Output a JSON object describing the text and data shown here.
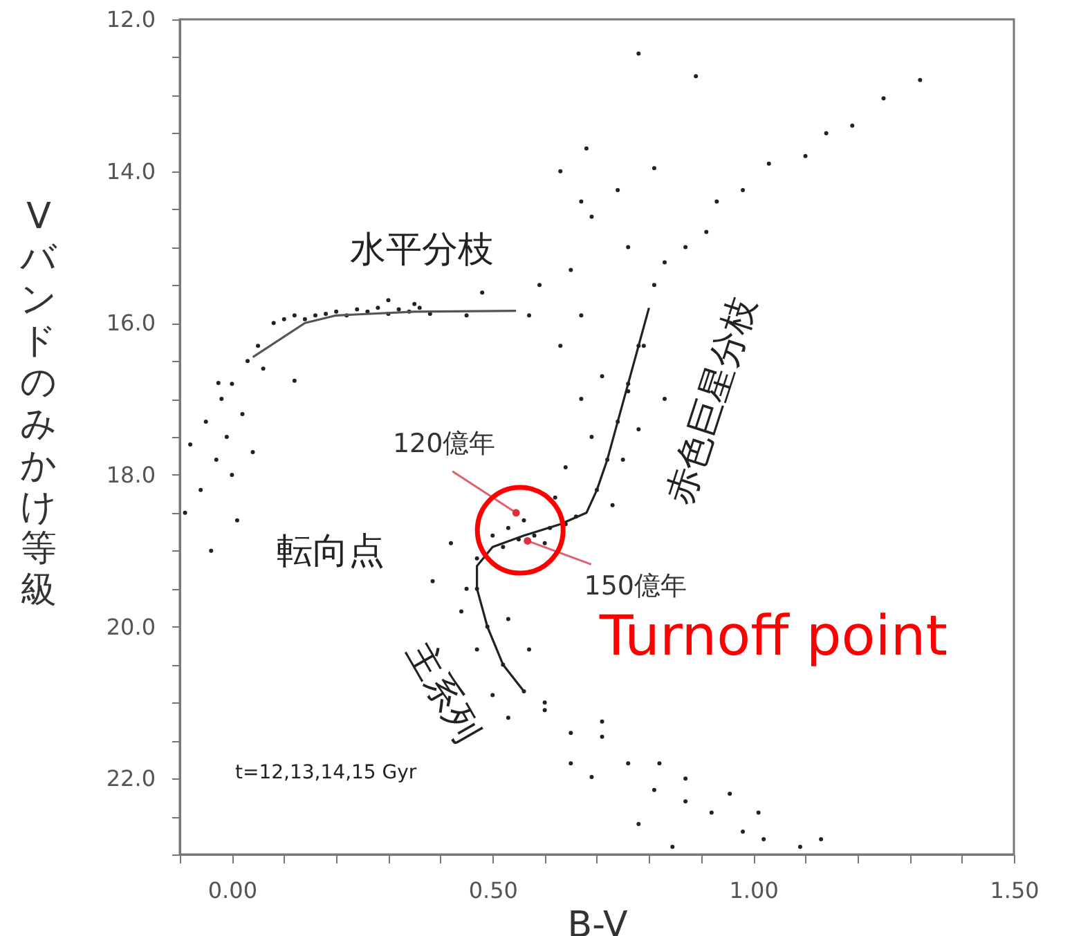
{
  "chart_data": {
    "type": "scatter",
    "xlabel": "B-V",
    "ylabel": "Vバンドのみかけ等級",
    "xlim": [
      -0.1,
      1.5
    ],
    "ylim": [
      23,
      12
    ],
    "xticks": [
      {
        "value": -0.1,
        "label": null
      },
      {
        "value": 0,
        "label": "0.00"
      },
      {
        "value": 0.1,
        "label": null
      },
      {
        "value": 0.2,
        "label": null
      },
      {
        "value": 0.3,
        "label": null
      },
      {
        "value": 0.4,
        "label": null
      },
      {
        "value": 0.5,
        "label": "0.50"
      },
      {
        "value": 0.6,
        "label": null
      },
      {
        "value": 0.7,
        "label": null
      },
      {
        "value": 0.8,
        "label": null
      },
      {
        "value": 0.9,
        "label": null
      },
      {
        "value": 1,
        "label": "1.00"
      },
      {
        "value": 1.1,
        "label": null
      },
      {
        "value": 1.2,
        "label": null
      },
      {
        "value": 1.3,
        "label": null
      },
      {
        "value": 1.4,
        "label": null
      },
      {
        "value": 1.5,
        "label": "1.50"
      }
    ],
    "yticks": [
      {
        "value": 12,
        "label": "12.0"
      },
      {
        "value": 12.5,
        "label": null
      },
      {
        "value": 13,
        "label": null
      },
      {
        "value": 13.5,
        "label": null
      },
      {
        "value": 14,
        "label": "14.0"
      },
      {
        "value": 14.5,
        "label": null
      },
      {
        "value": 15,
        "label": null
      },
      {
        "value": 15.5,
        "label": null
      },
      {
        "value": 16,
        "label": "16.0"
      },
      {
        "value": 16.5,
        "label": null
      },
      {
        "value": 17,
        "label": null
      },
      {
        "value": 17.5,
        "label": null
      },
      {
        "value": 18,
        "label": "18.0"
      },
      {
        "value": 18.5,
        "label": null
      },
      {
        "value": 19,
        "label": null
      },
      {
        "value": 19.5,
        "label": null
      },
      {
        "value": 20,
        "label": "20.0"
      },
      {
        "value": 20.5,
        "label": null
      },
      {
        "value": 21,
        "label": null
      },
      {
        "value": 21.5,
        "label": null
      },
      {
        "value": 22,
        "label": "22.0"
      },
      {
        "value": 22.5,
        "label": null
      },
      {
        "value": 23,
        "label": null
      }
    ],
    "grid": false,
    "series": [
      {
        "marker": "circle",
        "color": "#222222",
        "x": [
          -0.026,
          0.08,
          0.1,
          0.12,
          0.14,
          0.16,
          0.18,
          0.2,
          0.22,
          0.24,
          0.26,
          0.28,
          0.3,
          0.32,
          0.34,
          0.36,
          0.38,
          0.3,
          0.35,
          0.45,
          0.48,
          0.05,
          0.03,
          0.0,
          -0.02,
          -0.05,
          -0.08,
          0.02,
          -0.03,
          0.0,
          -0.06,
          0.04,
          -0.09,
          0.01,
          -0.04,
          0.06,
          -0.01,
          0.12,
          0.78,
          0.89,
          1.32,
          1.25,
          1.19,
          1.14,
          1.1,
          1.03,
          0.98,
          0.93,
          0.91,
          0.87,
          0.83,
          0.81,
          0.68,
          0.63,
          0.74,
          0.81,
          0.67,
          0.69,
          0.76,
          0.65,
          0.59,
          0.57,
          0.63,
          0.67,
          0.79,
          0.76,
          0.71,
          0.83,
          0.78,
          0.76,
          0.74,
          0.72,
          0.7,
          0.66,
          0.69,
          0.75,
          0.67,
          0.78,
          0.64,
          0.73,
          0.62,
          0.52,
          0.55,
          0.58,
          0.61,
          0.64,
          0.56,
          0.6,
          0.53,
          0.5,
          0.47,
          0.42,
          0.385,
          0.45,
          0.47,
          0.49,
          0.52,
          0.56,
          0.44,
          0.53,
          0.47,
          0.57,
          0.5,
          0.6,
          0.53,
          0.65,
          0.71,
          0.76,
          0.65,
          0.81,
          0.87,
          0.92,
          0.98,
          1.02,
          1.09,
          1.13,
          1.01,
          0.955,
          0.6,
          0.69,
          0.78,
          0.845,
          0.71,
          0.87,
          0.82
        ],
        "values": [
          16.79,
          16.0,
          15.95,
          15.9,
          15.95,
          15.9,
          15.88,
          15.85,
          15.9,
          15.82,
          15.85,
          15.8,
          15.88,
          15.82,
          15.85,
          15.8,
          15.88,
          15.7,
          15.75,
          15.9,
          15.6,
          16.3,
          16.5,
          16.8,
          17.0,
          17.3,
          17.6,
          17.2,
          17.8,
          18.0,
          18.2,
          17.7,
          18.5,
          18.6,
          19.0,
          16.6,
          17.5,
          16.76,
          12.45,
          12.75,
          12.8,
          13.04,
          13.4,
          13.5,
          13.8,
          13.9,
          14.25,
          14.4,
          14.8,
          15.0,
          15.2,
          15.5,
          13.7,
          14.0,
          14.25,
          13.96,
          14.4,
          14.6,
          15.0,
          15.3,
          15.5,
          15.9,
          16.3,
          15.9,
          16.3,
          16.9,
          16.7,
          17.0,
          16.3,
          16.8,
          17.3,
          17.8,
          18.2,
          18.55,
          17.5,
          17.8,
          17.0,
          17.4,
          17.9,
          18.4,
          18.3,
          18.95,
          18.85,
          18.8,
          18.7,
          18.65,
          18.6,
          18.9,
          18.7,
          18.8,
          19.1,
          18.9,
          19.4,
          19.5,
          19.5,
          20.0,
          20.5,
          20.85,
          19.8,
          19.9,
          20.3,
          20.3,
          20.9,
          21.0,
          21.2,
          21.4,
          21.45,
          21.8,
          21.8,
          22.15,
          22.3,
          22.45,
          22.7,
          22.8,
          22.9,
          22.8,
          22.45,
          22.2,
          21.1,
          21.98,
          22.6,
          22.9,
          21.25,
          22.0,
          21.8
        ]
      },
      {
        "type": "line",
        "marker": "none",
        "line_style": "solid",
        "color": "#222222",
        "x": [
          0.56,
          0.52,
          0.49,
          0.47,
          0.47,
          0.5,
          0.56,
          0.63,
          0.68,
          0.7,
          0.72,
          0.76,
          0.8
        ],
        "values": [
          20.85,
          20.5,
          20.0,
          19.5,
          19.2,
          18.95,
          18.8,
          18.65,
          18.5,
          18.2,
          17.8,
          16.8,
          15.8
        ]
      },
      {
        "type": "line",
        "marker": "none",
        "line_style": "solid",
        "color": "#555555",
        "x": [
          0.04,
          0.14,
          0.2,
          0.35,
          0.545
        ],
        "values": [
          16.45,
          16.0,
          15.9,
          15.85,
          15.84
        ]
      }
    ],
    "annotations": [
      "水平分枝",
      "赤色巨星分枝",
      "転向点",
      {
        "text": "120億年",
        "x": 0.545,
        "y": 18.5
      },
      {
        "text": "150億年",
        "x": 0.567,
        "y": 18.87
      },
      "主系列",
      {
        "text": "Turnoff point",
        "x": 0.553,
        "y": 18.73
      },
      "t=12,13,14,15 Gyr"
    ]
  }
}
